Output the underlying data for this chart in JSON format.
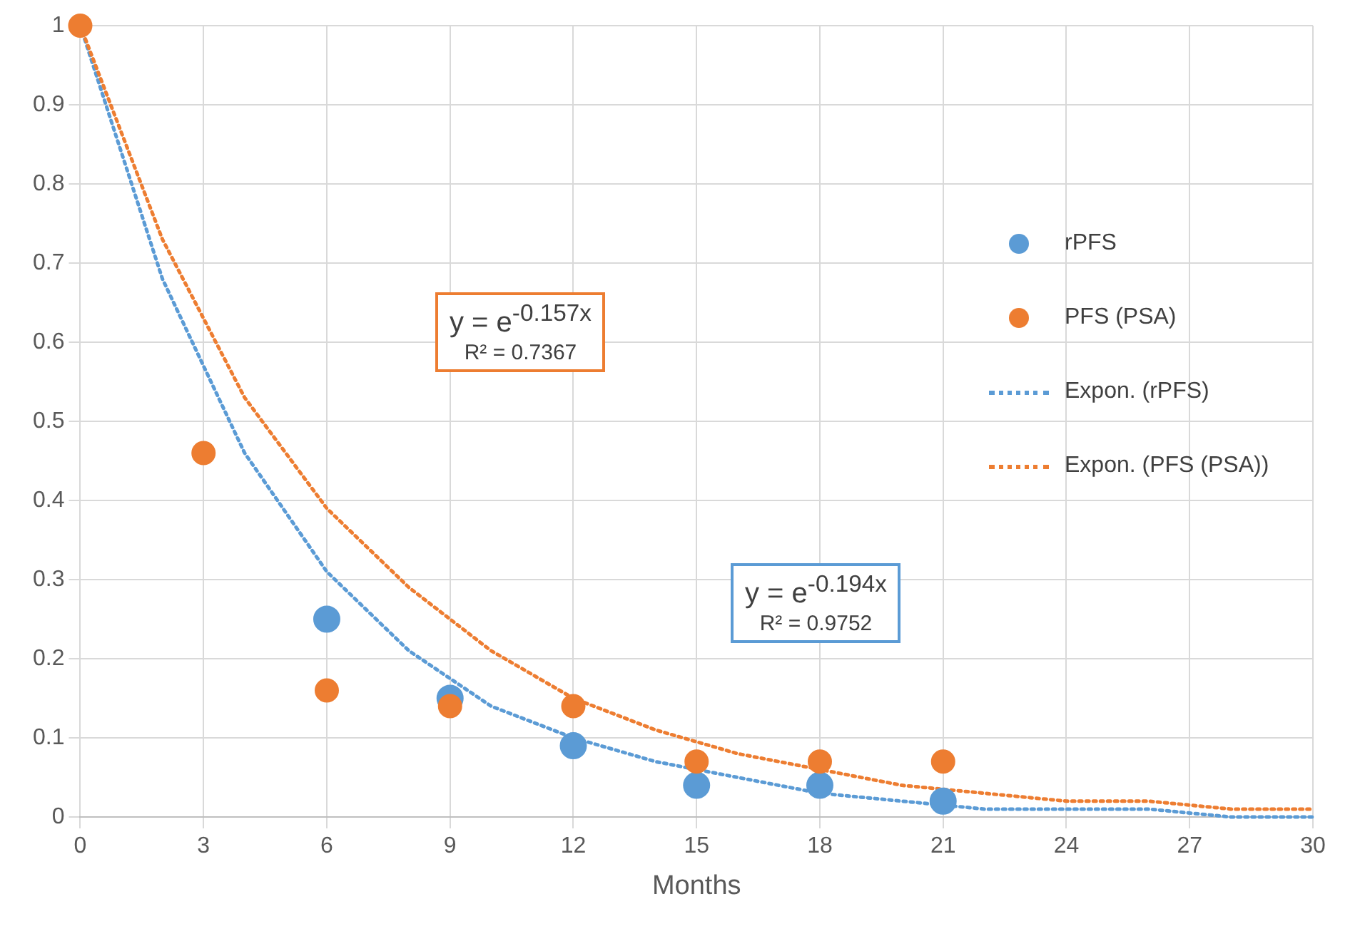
{
  "chart_data": {
    "type": "scatter",
    "xlabel": "Months",
    "xlim": [
      0,
      30
    ],
    "xticks": [
      0,
      3,
      6,
      9,
      12,
      15,
      18,
      21,
      24,
      27,
      30
    ],
    "ylim": [
      0,
      1
    ],
    "yticks": [
      0,
      0.1,
      0.2,
      0.3,
      0.4,
      0.5,
      0.6,
      0.7,
      0.8,
      0.9,
      1
    ],
    "grid": true,
    "legend": "right",
    "marker": "circle",
    "series": [
      {
        "name": "rPFS",
        "color": "#5b9bd5",
        "x": [
          6,
          9,
          12,
          15,
          18,
          21
        ],
        "values": [
          0.25,
          0.15,
          0.09,
          0.04,
          0.04,
          0.02
        ]
      },
      {
        "name": "PFS (PSA)",
        "color": "#ed7d31",
        "x": [
          0,
          3,
          6,
          9,
          12,
          15,
          18,
          21
        ],
        "values": [
          1,
          0.46,
          0.16,
          0.14,
          0.14,
          0.07,
          0.07,
          0.07
        ]
      },
      {
        "name": "Expon. (rPFS)",
        "type": "line",
        "line_style": "dotted",
        "marker": "none",
        "color": "#5b9bd5",
        "x": [
          0,
          2,
          4,
          6,
          8,
          10,
          12,
          14,
          16,
          18,
          20,
          22,
          24,
          26,
          28,
          30
        ],
        "values": [
          1,
          0.68,
          0.46,
          0.31,
          0.21,
          0.14,
          0.1,
          0.07,
          0.05,
          0.03,
          0.02,
          0.01,
          0.01,
          0.01,
          0,
          0
        ]
      },
      {
        "name": "Expon. (PFS (PSA))",
        "type": "line",
        "line_style": "dotted",
        "marker": "none",
        "color": "#ed7d31",
        "x": [
          0,
          2,
          4,
          6,
          8,
          10,
          12,
          14,
          16,
          18,
          20,
          22,
          24,
          26,
          28,
          30
        ],
        "values": [
          1,
          0.73,
          0.53,
          0.39,
          0.29,
          0.21,
          0.15,
          0.11,
          0.08,
          0.06,
          0.04,
          0.03,
          0.02,
          0.02,
          0.01,
          0.01
        ]
      }
    ],
    "annotations": [
      "y = e$^{-0.157x}$",
      "R² = 0.7367",
      "y = e$^{-0.194x}$",
      "R² = 0.9752"
    ]
  }
}
